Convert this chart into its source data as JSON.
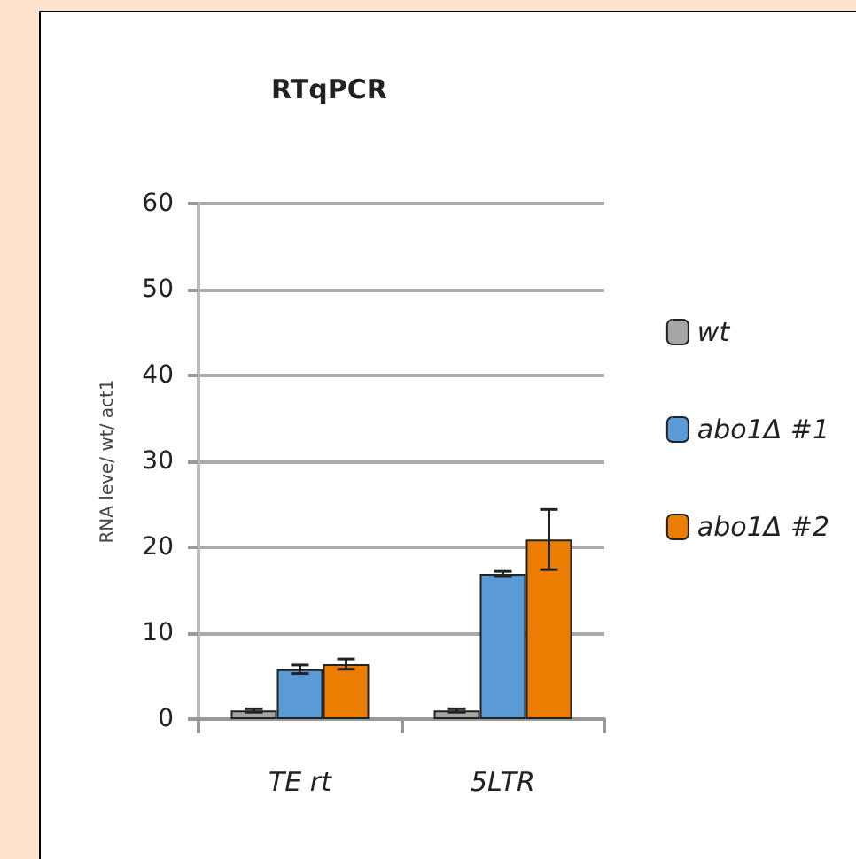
{
  "chart_data": {
    "type": "bar",
    "title": "RTqPCR",
    "ylabel": "RNA leve/ wt/ act1",
    "categories": [
      "TE rt",
      "5LTR"
    ],
    "series": [
      {
        "name": "wt",
        "color": "#a6a6a6",
        "values": [
          1,
          1
        ],
        "errors": [
          0.2,
          0.2
        ]
      },
      {
        "name": "abo1Δ #1",
        "color": "#5b9bd5",
        "values": [
          5.8,
          16.9
        ],
        "errors": [
          0.5,
          0.3
        ]
      },
      {
        "name": "abo1Δ #2",
        "color": "#ed7d00",
        "values": [
          6.4,
          20.9
        ],
        "errors": [
          0.6,
          3.5
        ]
      }
    ],
    "ylim": [
      0,
      60
    ],
    "yticks": [
      0,
      10,
      20,
      30,
      40,
      50,
      60
    ],
    "grid": "y",
    "legend": "right"
  }
}
